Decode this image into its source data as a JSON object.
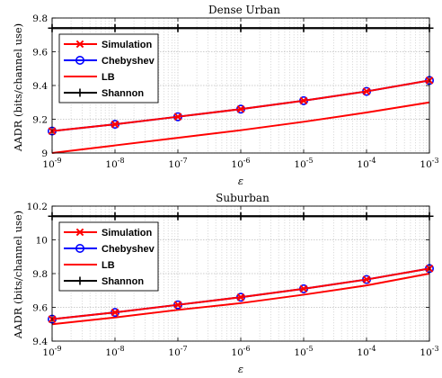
{
  "chart_data": [
    {
      "type": "line",
      "title": "Dense Urban",
      "xlabel": "ε",
      "ylabel": "AADR (bits/channel use)",
      "xscale": "log",
      "x": [
        1e-09,
        1e-08,
        1e-07,
        1e-06,
        1e-05,
        0.0001,
        0.001
      ],
      "x_tick_labels": [
        [
          "10",
          "-9"
        ],
        [
          "10",
          "-8"
        ],
        [
          "10",
          "-7"
        ],
        [
          "10",
          "-6"
        ],
        [
          "10",
          "-5"
        ],
        [
          "10",
          "-4"
        ],
        [
          "10",
          "-3"
        ]
      ],
      "ylim": [
        9.0,
        9.8
      ],
      "y_ticks": [
        "9",
        "9.2",
        "9.4",
        "9.6",
        "9.8"
      ],
      "grid": true,
      "legend_position": "top-left",
      "series": [
        {
          "name": "Simulation",
          "color": "#ff0000",
          "marker": "x",
          "values": [
            9.13,
            9.17,
            9.215,
            9.26,
            9.31,
            9.365,
            9.43
          ]
        },
        {
          "name": "Chebyshev",
          "color": "#0000ff",
          "marker": "circle",
          "values": [
            9.13,
            9.17,
            9.215,
            9.26,
            9.31,
            9.365,
            9.43
          ]
        },
        {
          "name": "LB",
          "color": "#ff0000",
          "marker": "none",
          "values": [
            9.0,
            9.045,
            9.09,
            9.135,
            9.185,
            9.24,
            9.3
          ]
        },
        {
          "name": "Shannon",
          "color": "#000000",
          "marker": "plus",
          "values": [
            9.74,
            9.74,
            9.74,
            9.74,
            9.74,
            9.74,
            9.74
          ]
        }
      ]
    },
    {
      "type": "line",
      "title": "Suburban",
      "xlabel": "ε",
      "ylabel": "AADR (bits/channel use)",
      "xscale": "log",
      "x": [
        1e-09,
        1e-08,
        1e-07,
        1e-06,
        1e-05,
        0.0001,
        0.001
      ],
      "x_tick_labels": [
        [
          "10",
          "-9"
        ],
        [
          "10",
          "-8"
        ],
        [
          "10",
          "-7"
        ],
        [
          "10",
          "-6"
        ],
        [
          "10",
          "-5"
        ],
        [
          "10",
          "-4"
        ],
        [
          "10",
          "-3"
        ]
      ],
      "ylim": [
        9.4,
        10.2
      ],
      "y_ticks": [
        "9.4",
        "9.6",
        "9.8",
        "10",
        "10.2"
      ],
      "grid": true,
      "legend_position": "top-left",
      "series": [
        {
          "name": "Simulation",
          "color": "#ff0000",
          "marker": "x",
          "values": [
            9.53,
            9.57,
            9.615,
            9.66,
            9.71,
            9.765,
            9.83
          ]
        },
        {
          "name": "Chebyshev",
          "color": "#0000ff",
          "marker": "circle",
          "values": [
            9.53,
            9.57,
            9.615,
            9.66,
            9.71,
            9.765,
            9.83
          ]
        },
        {
          "name": "LB",
          "color": "#ff0000",
          "marker": "none",
          "values": [
            9.5,
            9.54,
            9.585,
            9.625,
            9.675,
            9.73,
            9.8
          ]
        },
        {
          "name": "Shannon",
          "color": "#000000",
          "marker": "plus",
          "values": [
            10.14,
            10.14,
            10.14,
            10.14,
            10.14,
            10.14,
            10.14
          ]
        }
      ]
    }
  ]
}
